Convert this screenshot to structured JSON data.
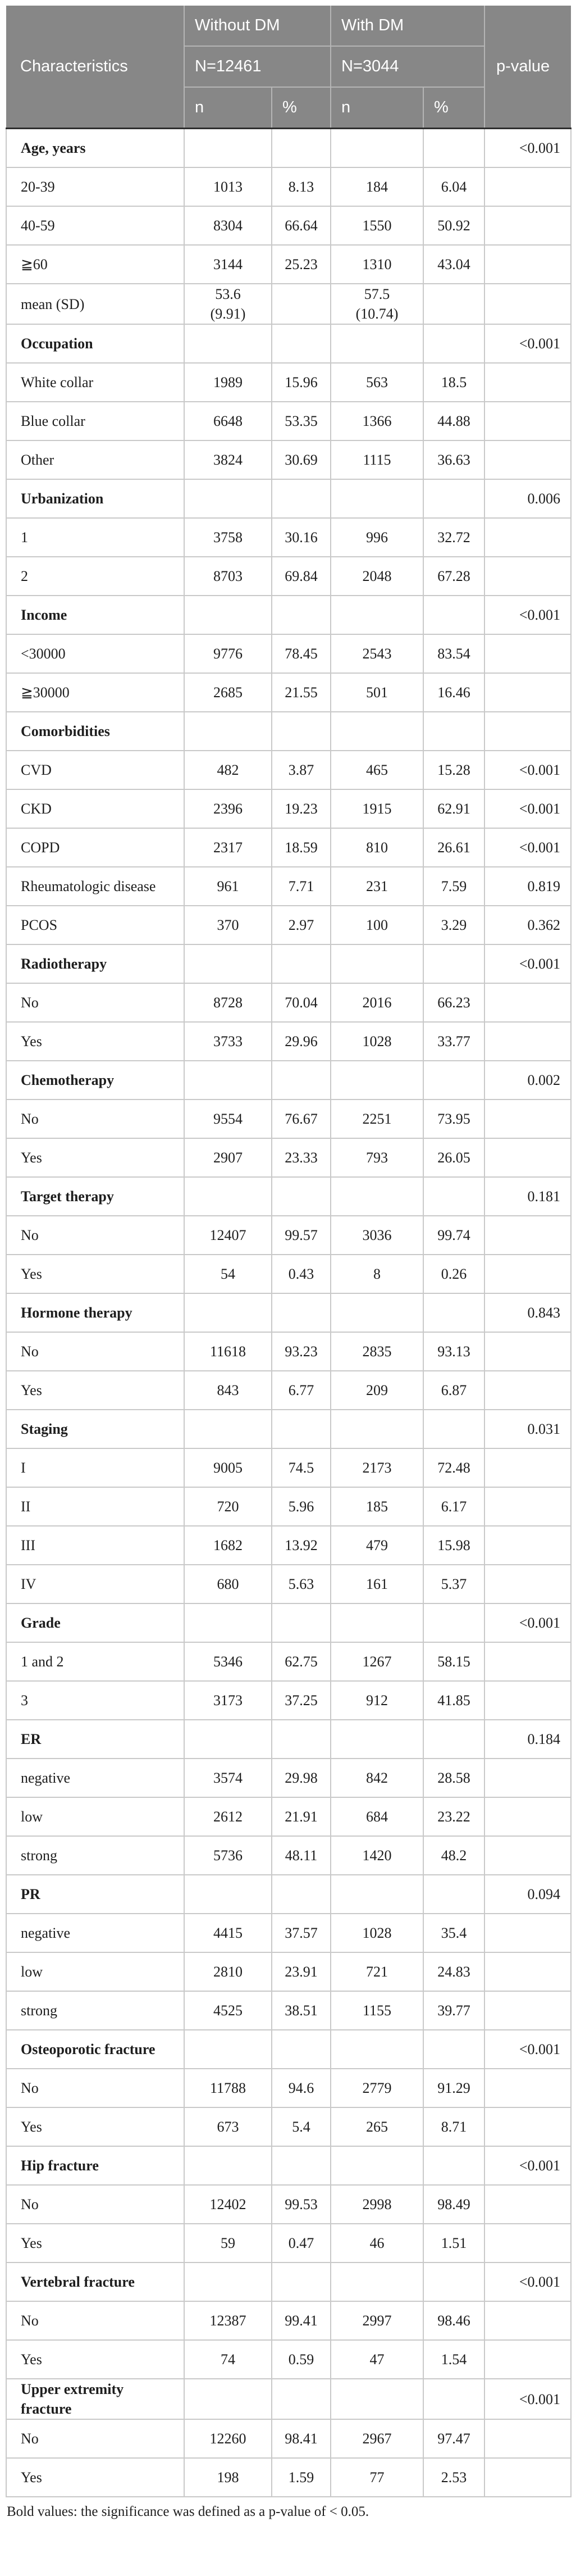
{
  "colors": {
    "header_bg": "#878787",
    "header_text": "#ffffff",
    "header_separator": "#b5b5b5",
    "header_bottom_line": "#2f2f2f",
    "body_border": "#c9c9c9",
    "body_text": "#1e1e1e"
  },
  "table": {
    "header": {
      "characteristics": "Characteristics",
      "group1": {
        "label": "Without DM",
        "n_label": "N=12461"
      },
      "group2": {
        "label": "With DM",
        "n_label": "N=3044"
      },
      "n_label": "n",
      "pct_label": "%",
      "p_value": "p-value"
    },
    "rows": [
      {
        "label": "Age, years",
        "bold": true,
        "n1": "",
        "pct1": "",
        "n2": "",
        "pct2": "",
        "p": "<0.001"
      },
      {
        "label": "20-39",
        "bold": false,
        "n1": "1013",
        "pct1": "8.13",
        "n2": "184",
        "pct2": "6.04",
        "p": ""
      },
      {
        "label": "40-59",
        "bold": false,
        "n1": "8304",
        "pct1": "66.64",
        "n2": "1550",
        "pct2": "50.92",
        "p": ""
      },
      {
        "label": "≧60",
        "bold": false,
        "n1": "3144",
        "pct1": "25.23",
        "n2": "1310",
        "pct2": "43.04",
        "p": ""
      },
      {
        "label": "mean (SD)",
        "bold": false,
        "n1": "53.6\n(9.91)",
        "pct1": "",
        "n2": "57.5\n(10.74)",
        "pct2": "",
        "p": ""
      },
      {
        "label": "Occupation",
        "bold": true,
        "n1": "",
        "pct1": "",
        "n2": "",
        "pct2": "",
        "p": "<0.001"
      },
      {
        "label": "White collar",
        "bold": false,
        "n1": "1989",
        "pct1": "15.96",
        "n2": "563",
        "pct2": "18.5",
        "p": ""
      },
      {
        "label": "Blue collar",
        "bold": false,
        "n1": "6648",
        "pct1": "53.35",
        "n2": "1366",
        "pct2": "44.88",
        "p": ""
      },
      {
        "label": "Other",
        "bold": false,
        "n1": "3824",
        "pct1": "30.69",
        "n2": "1115",
        "pct2": "36.63",
        "p": ""
      },
      {
        "label": "Urbanization",
        "bold": true,
        "n1": "",
        "pct1": "",
        "n2": "",
        "pct2": "",
        "p": "0.006"
      },
      {
        "label": "1",
        "bold": false,
        "n1": "3758",
        "pct1": "30.16",
        "n2": "996",
        "pct2": "32.72",
        "p": ""
      },
      {
        "label": "2",
        "bold": false,
        "n1": "8703",
        "pct1": "69.84",
        "n2": "2048",
        "pct2": "67.28",
        "p": ""
      },
      {
        "label": "Income",
        "bold": true,
        "n1": "",
        "pct1": "",
        "n2": "",
        "pct2": "",
        "p": "<0.001"
      },
      {
        "label": "<30000",
        "bold": false,
        "n1": "9776",
        "pct1": "78.45",
        "n2": "2543",
        "pct2": "83.54",
        "p": ""
      },
      {
        "label": "≧30000",
        "bold": false,
        "n1": "2685",
        "pct1": "21.55",
        "n2": "501",
        "pct2": "16.46",
        "p": ""
      },
      {
        "label": "Comorbidities",
        "bold": true,
        "n1": "",
        "pct1": "",
        "n2": "",
        "pct2": "",
        "p": ""
      },
      {
        "label": "CVD",
        "bold": false,
        "n1": "482",
        "pct1": "3.87",
        "n2": "465",
        "pct2": "15.28",
        "p": "<0.001"
      },
      {
        "label": "CKD",
        "bold": false,
        "n1": "2396",
        "pct1": "19.23",
        "n2": "1915",
        "pct2": "62.91",
        "p": "<0.001"
      },
      {
        "label": "COPD",
        "bold": false,
        "n1": "2317",
        "pct1": "18.59",
        "n2": "810",
        "pct2": "26.61",
        "p": "<0.001"
      },
      {
        "label": "Rheumatologic disease",
        "bold": false,
        "n1": "961",
        "pct1": "7.71",
        "n2": "231",
        "pct2": "7.59",
        "p": "0.819"
      },
      {
        "label": "PCOS",
        "bold": false,
        "n1": "370",
        "pct1": "2.97",
        "n2": "100",
        "pct2": "3.29",
        "p": "0.362"
      },
      {
        "label": "Radiotherapy",
        "bold": true,
        "n1": "",
        "pct1": "",
        "n2": "",
        "pct2": "",
        "p": "<0.001"
      },
      {
        "label": "No",
        "bold": false,
        "n1": "8728",
        "pct1": "70.04",
        "n2": "2016",
        "pct2": "66.23",
        "p": ""
      },
      {
        "label": "Yes",
        "bold": false,
        "n1": "3733",
        "pct1": "29.96",
        "n2": "1028",
        "pct2": "33.77",
        "p": ""
      },
      {
        "label": "Chemotherapy",
        "bold": true,
        "n1": "",
        "pct1": "",
        "n2": "",
        "pct2": "",
        "p": "0.002"
      },
      {
        "label": "No",
        "bold": false,
        "n1": "9554",
        "pct1": "76.67",
        "n2": "2251",
        "pct2": "73.95",
        "p": ""
      },
      {
        "label": "Yes",
        "bold": false,
        "n1": "2907",
        "pct1": "23.33",
        "n2": "793",
        "pct2": "26.05",
        "p": ""
      },
      {
        "label": "Target therapy",
        "bold": true,
        "n1": "",
        "pct1": "",
        "n2": "",
        "pct2": "",
        "p": "0.181"
      },
      {
        "label": "No",
        "bold": false,
        "n1": "12407",
        "pct1": "99.57",
        "n2": "3036",
        "pct2": "99.74",
        "p": ""
      },
      {
        "label": "Yes",
        "bold": false,
        "n1": "54",
        "pct1": "0.43",
        "n2": "8",
        "pct2": "0.26",
        "p": ""
      },
      {
        "label": "Hormone therapy",
        "bold": true,
        "n1": "",
        "pct1": "",
        "n2": "",
        "pct2": "",
        "p": "0.843"
      },
      {
        "label": "No",
        "bold": false,
        "n1": "11618",
        "pct1": "93.23",
        "n2": "2835",
        "pct2": "93.13",
        "p": ""
      },
      {
        "label": "Yes",
        "bold": false,
        "n1": "843",
        "pct1": "6.77",
        "n2": "209",
        "pct2": "6.87",
        "p": ""
      },
      {
        "label": "Staging",
        "bold": true,
        "n1": "",
        "pct1": "",
        "n2": "",
        "pct2": "",
        "p": "0.031"
      },
      {
        "label": "I",
        "bold": false,
        "n1": "9005",
        "pct1": "74.5",
        "n2": "2173",
        "pct2": "72.48",
        "p": ""
      },
      {
        "label": "II",
        "bold": false,
        "n1": "720",
        "pct1": "5.96",
        "n2": "185",
        "pct2": "6.17",
        "p": ""
      },
      {
        "label": "III",
        "bold": false,
        "n1": "1682",
        "pct1": "13.92",
        "n2": "479",
        "pct2": "15.98",
        "p": ""
      },
      {
        "label": "IV",
        "bold": false,
        "n1": "680",
        "pct1": "5.63",
        "n2": "161",
        "pct2": "5.37",
        "p": ""
      },
      {
        "label": "Grade",
        "bold": true,
        "n1": "",
        "pct1": "",
        "n2": "",
        "pct2": "",
        "p": "<0.001"
      },
      {
        "label": "1 and 2",
        "bold": false,
        "n1": "5346",
        "pct1": "62.75",
        "n2": "1267",
        "pct2": "58.15",
        "p": ""
      },
      {
        "label": "3",
        "bold": false,
        "n1": "3173",
        "pct1": "37.25",
        "n2": "912",
        "pct2": "41.85",
        "p": ""
      },
      {
        "label": "ER",
        "bold": true,
        "n1": "",
        "pct1": "",
        "n2": "",
        "pct2": "",
        "p": "0.184"
      },
      {
        "label": "negative",
        "bold": false,
        "n1": "3574",
        "pct1": "29.98",
        "n2": "842",
        "pct2": "28.58",
        "p": ""
      },
      {
        "label": "low",
        "bold": false,
        "n1": "2612",
        "pct1": "21.91",
        "n2": "684",
        "pct2": "23.22",
        "p": ""
      },
      {
        "label": "strong",
        "bold": false,
        "n1": "5736",
        "pct1": "48.11",
        "n2": "1420",
        "pct2": "48.2",
        "p": ""
      },
      {
        "label": "PR",
        "bold": true,
        "n1": "",
        "pct1": "",
        "n2": "",
        "pct2": "",
        "p": "0.094"
      },
      {
        "label": "negative",
        "bold": false,
        "n1": "4415",
        "pct1": "37.57",
        "n2": "1028",
        "pct2": "35.4",
        "p": ""
      },
      {
        "label": "low",
        "bold": false,
        "n1": "2810",
        "pct1": "23.91",
        "n2": "721",
        "pct2": "24.83",
        "p": ""
      },
      {
        "label": "strong",
        "bold": false,
        "n1": "4525",
        "pct1": "38.51",
        "n2": "1155",
        "pct2": "39.77",
        "p": ""
      },
      {
        "label": "Osteoporotic fracture",
        "bold": true,
        "n1": "",
        "pct1": "",
        "n2": "",
        "pct2": "",
        "p": "<0.001"
      },
      {
        "label": "No",
        "bold": false,
        "n1": "11788",
        "pct1": "94.6",
        "n2": "2779",
        "pct2": "91.29",
        "p": ""
      },
      {
        "label": "Yes",
        "bold": false,
        "n1": "673",
        "pct1": "5.4",
        "n2": "265",
        "pct2": "8.71",
        "p": ""
      },
      {
        "label": "Hip fracture",
        "bold": true,
        "n1": "",
        "pct1": "",
        "n2": "",
        "pct2": "",
        "p": "<0.001"
      },
      {
        "label": "No",
        "bold": false,
        "n1": "12402",
        "pct1": "99.53",
        "n2": "2998",
        "pct2": "98.49",
        "p": ""
      },
      {
        "label": "Yes",
        "bold": false,
        "n1": "59",
        "pct1": "0.47",
        "n2": "46",
        "pct2": "1.51",
        "p": ""
      },
      {
        "label": "Vertebral fracture",
        "bold": true,
        "n1": "",
        "pct1": "",
        "n2": "",
        "pct2": "",
        "p": "<0.001"
      },
      {
        "label": "No",
        "bold": false,
        "n1": "12387",
        "pct1": "99.41",
        "n2": "2997",
        "pct2": "98.46",
        "p": ""
      },
      {
        "label": "Yes",
        "bold": false,
        "n1": "74",
        "pct1": "0.59",
        "n2": "47",
        "pct2": "1.54",
        "p": ""
      },
      {
        "label": "Upper extremity\nfracture",
        "bold": true,
        "n1": "",
        "pct1": "",
        "n2": "",
        "pct2": "",
        "p": "<0.001"
      },
      {
        "label": "No",
        "bold": false,
        "n1": "12260",
        "pct1": "98.41",
        "n2": "2967",
        "pct2": "97.47",
        "p": ""
      },
      {
        "label": "Yes",
        "bold": false,
        "n1": "198",
        "pct1": "1.59",
        "n2": "77",
        "pct2": "2.53",
        "p": ""
      }
    ],
    "footnote": "Bold values: the significance was defined as a p-value of < 0.05."
  }
}
